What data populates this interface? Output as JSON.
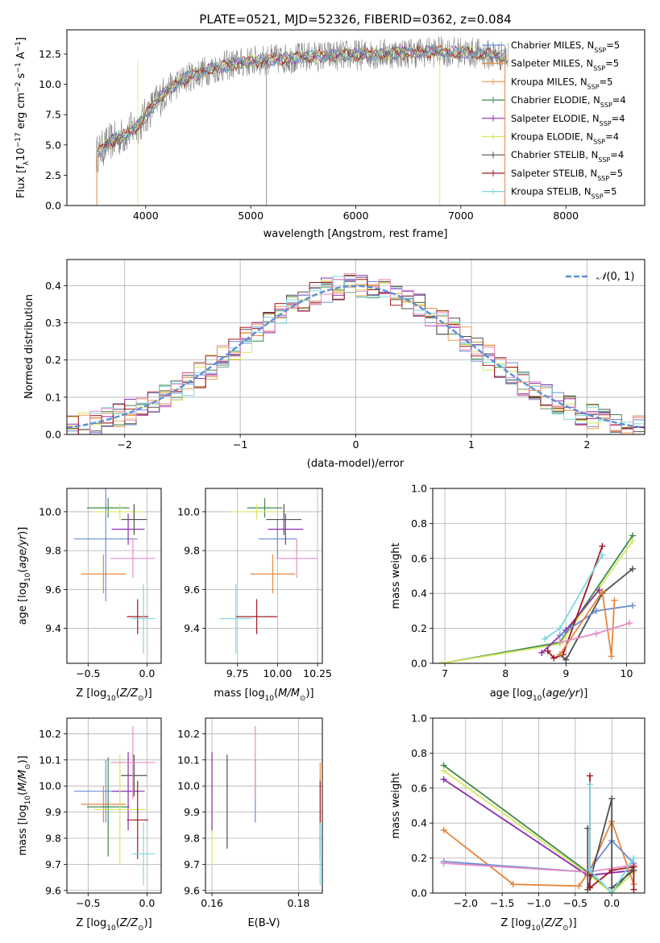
{
  "title": "PLATE=0521, MJD=52326, FIBERID=0362, z=0.084",
  "colors": {
    "Chabrier MILES": "#6b8ed6",
    "Salpeter MILES": "#e6873c",
    "Kroupa MILES": "#f0a050",
    "Chabrier ELODIE": "#3d8a50",
    "Salpeter ELODIE": "#8e2bb0",
    "Kroupa ELODIE": "#d6e860",
    "Chabrier STELIB": "#505050",
    "Salpeter STELIB": "#a01820",
    "Kroupa STELIB": "#7ed6e0",
    "pink": "#e68cc6",
    "obs": "#808080",
    "gauss": "#5b8fd6"
  },
  "chart_data": [
    {
      "type": "line",
      "title": "PLATE=0521, MJD=52326, FIBERID=0362, z=0.084",
      "xlabel": "wavelength [Angstrom, rest frame]",
      "ylabel": "Flux [f_λ 10^-17 erg cm^-2 s^-1 A^-1]",
      "xlim": [
        3250,
        8750
      ],
      "ylim": [
        0,
        14.5
      ],
      "xticks": [
        4000,
        5000,
        6000,
        7000,
        8000
      ],
      "yticks": [
        0.0,
        2.5,
        5.0,
        7.5,
        10.0,
        12.5
      ],
      "legend_position": "right",
      "legend": [
        {
          "label": "Chabrier MILES, N",
          "sub": "SSP",
          "tail": "=5",
          "color_key": "Chabrier MILES"
        },
        {
          "label": "Salpeter MILES, N",
          "sub": "SSP",
          "tail": "=5",
          "color_key": "Salpeter MILES"
        },
        {
          "label": "Kroupa MILES, N",
          "sub": "SSP",
          "tail": "=5",
          "color_key": "Kroupa MILES"
        },
        {
          "label": "Chabrier ELODIE, N",
          "sub": "SSP",
          "tail": "=4",
          "color_key": "Chabrier ELODIE"
        },
        {
          "label": "Salpeter ELODIE, N",
          "sub": "SSP",
          "tail": "=4",
          "color_key": "Salpeter ELODIE"
        },
        {
          "label": "Kroupa ELODIE, N",
          "sub": "SSP",
          "tail": "=4",
          "color_key": "Kroupa ELODIE"
        },
        {
          "label": "Chabrier STELIB, N",
          "sub": "SSP",
          "tail": "=4",
          "color_key": "Chabrier STELIB"
        },
        {
          "label": "Salpeter STELIB, N",
          "sub": "SSP",
          "tail": "=5",
          "color_key": "Salpeter STELIB"
        },
        {
          "label": "Kroupa STELIB, N",
          "sub": "SSP",
          "tail": "=5",
          "color_key": "Kroupa STELIB"
        }
      ],
      "spectrum_knots": {
        "x": [
          3530,
          3650,
          3800,
          3950,
          4050,
          4200,
          4400,
          4600,
          4800,
          5000,
          5300,
          5600,
          5900,
          6200,
          6500,
          6800,
          7100,
          7300,
          7450
        ],
        "y": [
          4.2,
          5.2,
          5.8,
          6.8,
          8.0,
          9.5,
          10.6,
          11.2,
          11.6,
          11.9,
          12.1,
          12.3,
          12.4,
          12.5,
          12.6,
          12.7,
          12.6,
          12.4,
          12.3
        ]
      }
    },
    {
      "type": "histogram",
      "xlabel": "(data-model)/error",
      "ylabel": "Normed distribution",
      "xlim": [
        -2.5,
        2.5
      ],
      "ylim": [
        0,
        0.47
      ],
      "xticks": [
        -2,
        -1,
        0,
        1,
        2
      ],
      "yticks": [
        0.0,
        0.1,
        0.2,
        0.3,
        0.4
      ],
      "legend_position": "top-right",
      "reference": {
        "label": "N(0,1)",
        "mean": 0,
        "sd": 1
      },
      "bin_width": 0.1,
      "bins_from": -2.5
    },
    {
      "type": "scatter",
      "xlabel": "Z [log10(Z/Z⊙)]",
      "ylabel": "age [log10(age/yr)]",
      "xlim": [
        -0.68,
        0.12
      ],
      "ylim": [
        9.22,
        10.12
      ],
      "xticks": [
        -0.5,
        0.0
      ],
      "yticks": [
        9.4,
        9.6,
        9.8,
        10.0
      ],
      "points": [
        {
          "c": "Chabrier MILES",
          "x": -0.35,
          "y": 9.86,
          "ex": 0.27,
          "ey": 0.32
        },
        {
          "c": "Salpeter MILES",
          "x": -0.37,
          "y": 9.68,
          "ex": 0.19,
          "ey": 0.1
        },
        {
          "c": "Chabrier ELODIE",
          "x": -0.33,
          "y": 10.02,
          "ex": 0.18,
          "ey": 0.05
        },
        {
          "c": "Salpeter ELODIE",
          "x": -0.16,
          "y": 9.91,
          "ex": 0.14,
          "ey": 0.08
        },
        {
          "c": "Kroupa ELODIE",
          "x": -0.23,
          "y": 10.0,
          "ex": 0.22,
          "ey": 0.04
        },
        {
          "c": "Chabrier STELIB",
          "x": -0.11,
          "y": 9.96,
          "ex": 0.11,
          "ey": 0.08
        },
        {
          "c": "Salpeter STELIB",
          "x": -0.08,
          "y": 9.46,
          "ex": 0.09,
          "ey": 0.09
        },
        {
          "c": "Kroupa STELIB",
          "x": -0.03,
          "y": 9.45,
          "ex": 0.1,
          "ey": 0.18
        },
        {
          "c": "pink",
          "x": -0.12,
          "y": 9.76,
          "ex": 0.19,
          "ey": 0.1
        }
      ]
    },
    {
      "type": "scatter",
      "xlabel": "mass [log10(M/M⊙)]",
      "ylabel": "",
      "xlim": [
        9.55,
        10.28
      ],
      "ylim": [
        9.22,
        10.12
      ],
      "xticks": [
        9.75,
        10.0,
        10.25
      ],
      "yticks": [
        9.4,
        9.6,
        9.8,
        10.0
      ],
      "points": [
        {
          "c": "Chabrier MILES",
          "x": 10.0,
          "y": 9.86,
          "ex": 0.12,
          "ey": 0.1
        },
        {
          "c": "Salpeter MILES",
          "x": 9.97,
          "y": 9.68,
          "ex": 0.14,
          "ey": 0.1
        },
        {
          "c": "Chabrier ELODIE",
          "x": 9.92,
          "y": 10.02,
          "ex": 0.11,
          "ey": 0.05
        },
        {
          "c": "Salpeter ELODIE",
          "x": 10.05,
          "y": 9.91,
          "ex": 0.11,
          "ey": 0.08
        },
        {
          "c": "Kroupa ELODIE",
          "x": 9.87,
          "y": 10.0,
          "ex": 0.16,
          "ey": 0.04
        },
        {
          "c": "Chabrier STELIB",
          "x": 10.04,
          "y": 9.96,
          "ex": 0.11,
          "ey": 0.08
        },
        {
          "c": "Salpeter STELIB",
          "x": 9.87,
          "y": 9.46,
          "ex": 0.13,
          "ey": 0.09
        },
        {
          "c": "Kroupa STELIB",
          "x": 9.74,
          "y": 9.45,
          "ex": 0.1,
          "ey": 0.18
        },
        {
          "c": "pink",
          "x": 10.12,
          "y": 9.76,
          "ex": 0.13,
          "ey": 0.1
        }
      ]
    },
    {
      "type": "line",
      "xlabel": "age [log10(age/yr)]",
      "ylabel": "mass weight",
      "xlim": [
        6.8,
        10.3
      ],
      "ylim": [
        0,
        1.0
      ],
      "xticks": [
        7,
        8,
        9,
        10
      ],
      "yticks": [
        0.0,
        0.2,
        0.4,
        0.6,
        0.8,
        1.0
      ],
      "series": [
        {
          "c": "Chabrier ELODIE",
          "x": [
            6.95,
            8.9,
            10.1
          ],
          "y": [
            0.0,
            0.12,
            0.73
          ]
        },
        {
          "c": "Kroupa ELODIE",
          "x": [
            6.95,
            8.9,
            10.1
          ],
          "y": [
            0.0,
            0.11,
            0.7
          ]
        },
        {
          "c": "Salpeter ELODIE",
          "x": [
            8.6,
            9.0,
            9.55
          ],
          "y": [
            0.06,
            0.19,
            0.42
          ]
        },
        {
          "c": "Salpeter STELIB",
          "x": [
            8.7,
            8.8,
            8.95,
            9.6
          ],
          "y": [
            0.07,
            0.03,
            0.05,
            0.67
          ]
        },
        {
          "c": "Chabrier STELIB",
          "x": [
            8.9,
            9.0,
            9.6,
            10.1
          ],
          "y": [
            0.05,
            0.02,
            0.4,
            0.54
          ]
        },
        {
          "c": "Kroupa STELIB",
          "x": [
            8.65,
            8.9,
            9.6
          ],
          "y": [
            0.14,
            0.2,
            0.62
          ]
        },
        {
          "c": "Chabrier MILES",
          "x": [
            8.9,
            9.5,
            10.1
          ],
          "y": [
            0.16,
            0.3,
            0.33
          ]
        },
        {
          "c": "Salpeter MILES",
          "x": [
            8.9,
            9.6,
            9.75,
            9.8
          ],
          "y": [
            0.05,
            0.41,
            0.04,
            0.36
          ]
        },
        {
          "c": "pink",
          "x": [
            8.9,
            9.5,
            10.05
          ],
          "y": [
            0.12,
            0.17,
            0.23
          ]
        }
      ]
    },
    {
      "type": "scatter",
      "xlabel": "Z [log10(Z/Z⊙)]",
      "ylabel": "mass [log10(M/M⊙)]",
      "xlim": [
        -0.68,
        0.12
      ],
      "ylim": [
        9.59,
        10.26
      ],
      "xticks": [
        -0.5,
        0.0
      ],
      "yticks": [
        9.6,
        9.7,
        9.8,
        9.9,
        10.0,
        10.1,
        10.2
      ],
      "points": [
        {
          "c": "Chabrier MILES",
          "x": -0.35,
          "y": 9.98,
          "ex": 0.27,
          "ey": 0.12
        },
        {
          "c": "Salpeter MILES",
          "x": -0.37,
          "y": 9.93,
          "ex": 0.19,
          "ey": 0.07
        },
        {
          "c": "Chabrier ELODIE",
          "x": -0.33,
          "y": 9.92,
          "ex": 0.18,
          "ey": 0.19
        },
        {
          "c": "Salpeter ELODIE",
          "x": -0.16,
          "y": 9.98,
          "ex": 0.14,
          "ey": 0.15
        },
        {
          "c": "Kroupa ELODIE",
          "x": -0.23,
          "y": 9.91,
          "ex": 0.22,
          "ey": 0.21
        },
        {
          "c": "Chabrier STELIB",
          "x": -0.11,
          "y": 10.04,
          "ex": 0.11,
          "ey": 0.08
        },
        {
          "c": "Salpeter STELIB",
          "x": -0.08,
          "y": 9.87,
          "ex": 0.09,
          "ey": 0.15
        },
        {
          "c": "Kroupa STELIB",
          "x": -0.03,
          "y": 9.74,
          "ex": 0.1,
          "ey": 0.12
        },
        {
          "c": "pink",
          "x": -0.12,
          "y": 10.09,
          "ex": 0.19,
          "ey": 0.14
        }
      ]
    },
    {
      "type": "scatter",
      "xlabel": "E(B-V)",
      "ylabel": "",
      "xlim": [
        0.1585,
        0.1855
      ],
      "ylim": [
        9.59,
        10.26
      ],
      "xticks": [
        0.16,
        0.18
      ],
      "yticks": [
        9.6,
        9.7,
        9.8,
        9.9,
        10.0,
        10.1,
        10.2
      ],
      "points": [
        {
          "c": "Kroupa ELODIE",
          "x": 0.16,
          "y": 9.91,
          "ex": 0,
          "ey": 0.21
        },
        {
          "c": "Salpeter ELODIE",
          "x": 0.16,
          "y": 9.98,
          "ex": 0,
          "ey": 0.15
        },
        {
          "c": "Chabrier STELIB",
          "x": 0.1635,
          "y": 9.94,
          "ex": 0,
          "ey": 0.18
        },
        {
          "c": "Chabrier MILES",
          "x": 0.17,
          "y": 9.98,
          "ex": 0,
          "ey": 0.12
        },
        {
          "c": "pink",
          "x": 0.17,
          "y": 10.09,
          "ex": 0,
          "ey": 0.14
        },
        {
          "c": "Salpeter MILES",
          "x": 0.185,
          "y": 9.93,
          "ex": 0,
          "ey": 0.16
        },
        {
          "c": "Salpeter STELIB",
          "x": 0.185,
          "y": 9.87,
          "ex": 0,
          "ey": 0.15
        },
        {
          "c": "Kroupa STELIB",
          "x": 0.185,
          "y": 9.74,
          "ex": 0,
          "ey": 0.12
        }
      ]
    },
    {
      "type": "line",
      "xlabel": "Z [log10(Z/Z⊙)]",
      "ylabel": "mass weight",
      "xlim": [
        -2.45,
        0.45
      ],
      "ylim": [
        0,
        1.0
      ],
      "xticks": [
        -2.0,
        -1.5,
        -1.0,
        -0.5,
        0.0
      ],
      "yticks": [
        0.0,
        0.2,
        0.4,
        0.6,
        0.8,
        1.0
      ],
      "series": [
        {
          "c": "Chabrier ELODIE",
          "x": [
            -2.3,
            -0.33,
            0.0,
            0.3
          ],
          "y": [
            0.73,
            0.12,
            0.0,
            0.15
          ]
        },
        {
          "c": "Kroupa ELODIE",
          "x": [
            -2.3,
            -0.33,
            0.0,
            0.3
          ],
          "y": [
            0.7,
            0.11,
            0.0,
            0.12
          ]
        },
        {
          "c": "Salpeter ELODIE",
          "x": [
            -2.3,
            -0.33,
            0.3
          ],
          "y": [
            0.65,
            0.1,
            0.13
          ]
        },
        {
          "c": "Salpeter MILES",
          "x": [
            -2.3,
            -1.35,
            -0.45,
            -0.3,
            0.0,
            0.3
          ],
          "y": [
            0.36,
            0.05,
            0.04,
            0.13,
            0.41,
            0.05
          ]
        },
        {
          "c": "Chabrier MILES",
          "x": [
            -2.3,
            -0.33,
            0.0,
            0.3
          ],
          "y": [
            0.18,
            0.12,
            0.3,
            0.17
          ]
        },
        {
          "c": "pink",
          "x": [
            -2.3,
            -0.33,
            0.3
          ],
          "y": [
            0.17,
            0.12,
            0.16
          ]
        },
        {
          "c": "Chabrier STELIB",
          "x": [
            -0.33,
            -0.33,
            0.0,
            0.0,
            0.3
          ],
          "y": [
            0.37,
            0.02,
            0.54,
            0.03,
            0.13
          ]
        },
        {
          "c": "Salpeter STELIB",
          "x": [
            -0.3,
            -0.3,
            0.0,
            0.3,
            0.3
          ],
          "y": [
            0.67,
            0.03,
            0.13,
            0.15,
            0.02
          ]
        },
        {
          "c": "Kroupa STELIB",
          "x": [
            -0.3,
            -0.3,
            0.0,
            0.3
          ],
          "y": [
            0.62,
            0.13,
            0.0,
            0.2
          ]
        }
      ]
    }
  ]
}
